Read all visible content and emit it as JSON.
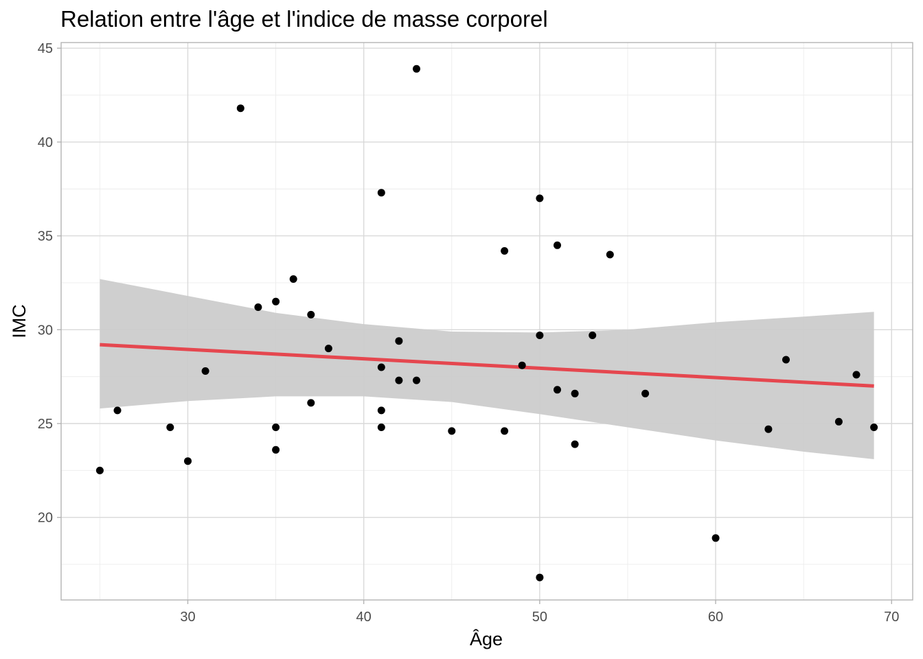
{
  "chart_data": {
    "type": "scatter",
    "title": "Relation entre l'âge et l'indice de masse corporel",
    "xlabel": "Âge",
    "ylabel": "IMC",
    "xlim": [
      22.8,
      71.2
    ],
    "ylim": [
      15.6,
      45.3
    ],
    "x_ticks": [
      30,
      40,
      50,
      60,
      70
    ],
    "y_ticks": [
      20,
      25,
      30,
      35,
      40,
      45
    ],
    "x_tick_labels": [
      "30",
      "40",
      "50",
      "60",
      "70"
    ],
    "y_tick_labels": [
      "20",
      "25",
      "30",
      "35",
      "40",
      "45"
    ],
    "grid": true,
    "legend": "none",
    "points": {
      "x": [
        25,
        26,
        29,
        30,
        31,
        33,
        34,
        35,
        35,
        35,
        36,
        37,
        37,
        38,
        41,
        41,
        41,
        41,
        42,
        42,
        43,
        43,
        45,
        48,
        48,
        49,
        50,
        50,
        50,
        51,
        51,
        52,
        52,
        53,
        54,
        56,
        60,
        63,
        64,
        67,
        68,
        69
      ],
      "y": [
        22.5,
        25.7,
        24.8,
        23.0,
        27.8,
        41.8,
        31.2,
        31.5,
        24.8,
        23.6,
        32.7,
        30.8,
        26.1,
        29.0,
        37.3,
        28.0,
        25.7,
        24.8,
        29.4,
        27.3,
        43.9,
        27.3,
        24.6,
        34.2,
        24.6,
        28.1,
        37.0,
        29.7,
        16.8,
        34.5,
        26.8,
        26.6,
        23.9,
        29.7,
        34.0,
        26.6,
        18.9,
        24.7,
        28.4,
        25.1,
        27.6,
        24.8
      ],
      "color": "#000000"
    },
    "regression_line": {
      "x": [
        25,
        69
      ],
      "y": [
        29.2,
        27.0
      ],
      "color": "#e5474f"
    },
    "confidence_band": {
      "color": "#cccccc",
      "x": [
        25,
        30,
        35,
        40,
        45,
        50,
        55,
        60,
        65,
        69
      ],
      "lower": [
        25.8,
        26.2,
        26.45,
        26.45,
        26.15,
        25.5,
        24.8,
        24.1,
        23.5,
        23.1
      ],
      "upper": [
        32.7,
        31.8,
        30.9,
        30.3,
        29.9,
        29.85,
        30.0,
        30.4,
        30.7,
        30.95
      ]
    }
  }
}
